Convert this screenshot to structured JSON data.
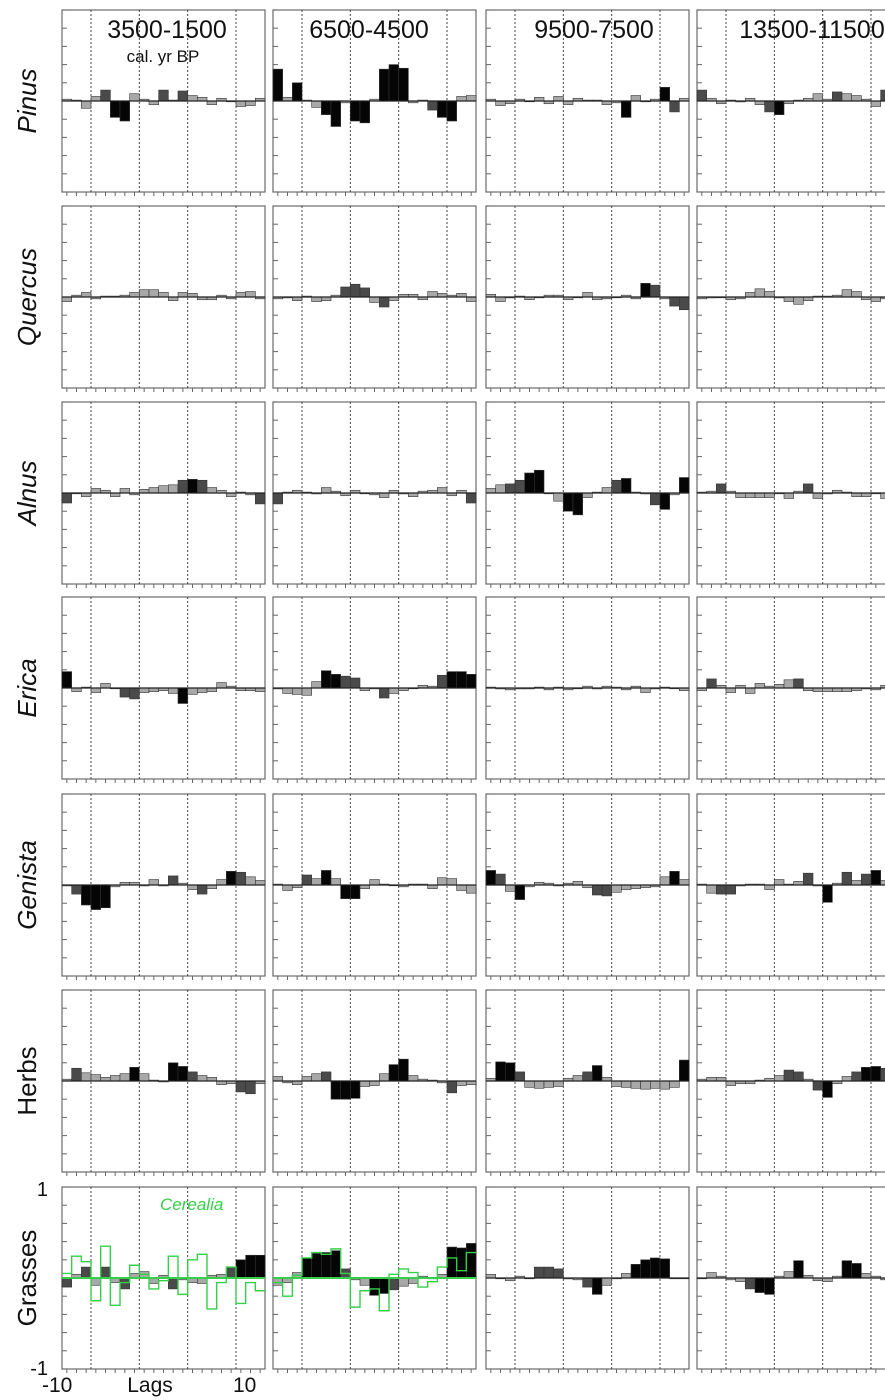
{
  "chart_data": {
    "type": "bar",
    "panel_titles": [
      "3500-1500",
      "6500-4500",
      "9500-7500",
      "13500-11500"
    ],
    "title_subtext": "cal. yr BP",
    "row_labels": [
      {
        "text": "Pinus",
        "italic": true
      },
      {
        "text": "Quercus",
        "italic": true
      },
      {
        "text": "Alnus",
        "italic": true
      },
      {
        "text": "Erica",
        "italic": true
      },
      {
        "text": "Genista",
        "italic": true
      },
      {
        "text": "Herbs",
        "italic": false
      },
      {
        "text": "Grasses",
        "italic": false
      }
    ],
    "xlabel": "Lags",
    "x_tick_labels": [
      "-10",
      "10"
    ],
    "y_tick_labels": [
      "1",
      "-1"
    ],
    "ylim": [
      -1,
      1
    ],
    "lags": [
      -10,
      -9,
      -8,
      -7,
      -6,
      -5,
      -4,
      -3,
      -2,
      -1,
      0,
      1,
      2,
      3,
      4,
      5,
      6,
      7,
      8,
      9,
      10
    ],
    "overlay_label": "Cerealia",
    "colors": {
      "low": "#a8a8a8",
      "mid": "#4a4a4a",
      "high": "#050505",
      "overlay": "#35d04a"
    },
    "values": [
      [
        [
          0.02,
          0.01,
          -0.08,
          0.05,
          0.12,
          -0.18,
          -0.22,
          0.08,
          0.02,
          -0.04,
          0.12,
          0.01,
          0.11,
          0.06,
          0.04,
          -0.04,
          0.03,
          0,
          -0.06,
          -0.05,
          0.03
        ],
        [
          0.35,
          0.04,
          0.2,
          0.01,
          -0.07,
          -0.15,
          -0.28,
          -0.02,
          -0.22,
          -0.24,
          0.02,
          0.35,
          0.4,
          0.36,
          -0.02,
          0.01,
          -0.1,
          -0.18,
          -0.22,
          0.05,
          0.06
        ],
        [
          0.02,
          -0.05,
          -0.03,
          0.02,
          0,
          0.04,
          -0.03,
          0.05,
          -0.04,
          0.03,
          0.01,
          0.01,
          -0.04,
          -0.02,
          -0.18,
          0.06,
          0,
          0.02,
          0.15,
          -0.12,
          0.03
        ],
        [
          0.12,
          0.03,
          -0.03,
          0.01,
          -0.01,
          0.03,
          -0.04,
          -0.12,
          -0.15,
          -0.03,
          0.01,
          0.03,
          0.08,
          0.02,
          0.1,
          0.08,
          0.06,
          0.02,
          -0.06,
          0.12,
          0.13
        ]
      ],
      [
        [
          -0.05,
          0.02,
          0.05,
          -0.02,
          0.01,
          0.01,
          0.02,
          0.05,
          0.08,
          0.08,
          0.05,
          -0.04,
          0.05,
          0.04,
          -0.03,
          -0.03,
          0.02,
          -0.02,
          0.05,
          0.06,
          -0.02
        ],
        [
          -0.02,
          -0.01,
          -0.04,
          0.01,
          -0.05,
          -0.04,
          0.02,
          0.11,
          0.14,
          0.1,
          -0.06,
          -0.11,
          -0.04,
          0.03,
          0.03,
          -0.03,
          0.06,
          0.04,
          0.02,
          0.04,
          -0.05
        ],
        [
          0.03,
          -0.05,
          -0.01,
          0.01,
          -0.03,
          0,
          0.02,
          0.02,
          -0.03,
          0,
          0.05,
          -0.03,
          -0.02,
          0,
          0.02,
          -0.02,
          0.15,
          0.13,
          -0.02,
          -0.1,
          -0.14
        ],
        [
          -0.02,
          -0.01,
          0,
          -0.03,
          -0.02,
          0.05,
          0.09,
          0.06,
          -0.01,
          -0.05,
          -0.08,
          -0.04,
          0.01,
          0.01,
          0.02,
          0.08,
          0.06,
          -0.03,
          -0.05,
          -0.02,
          -0.02
        ]
      ],
      [
        [
          -0.11,
          0,
          -0.04,
          0.05,
          0.03,
          -0.04,
          0.05,
          -0.02,
          0.04,
          0.06,
          0.08,
          0.09,
          0.14,
          0.15,
          0.14,
          0.06,
          0.03,
          -0.04,
          0.01,
          -0.02,
          -0.12
        ],
        [
          -0.12,
          0.01,
          0.03,
          0.01,
          -0.01,
          0.06,
          0.02,
          -0.03,
          0.03,
          0,
          -0.02,
          -0.05,
          0.03,
          -0.01,
          -0.04,
          0.02,
          0.03,
          0.06,
          -0.03,
          0.03,
          -0.11
        ],
        [
          0.05,
          0.09,
          0.1,
          0.14,
          0.22,
          0.25,
          0,
          -0.09,
          -0.2,
          -0.24,
          -0.05,
          0.01,
          0.06,
          0.14,
          0.16,
          0.01,
          -0.01,
          -0.13,
          -0.18,
          -0.02,
          0.17
        ],
        [
          0.01,
          0.02,
          0.1,
          0.02,
          -0.05,
          -0.05,
          -0.05,
          -0.05,
          0,
          -0.06,
          0.02,
          0.1,
          -0.06,
          -0.01,
          0.03,
          0.01,
          -0.04,
          -0.04,
          0,
          -0.06,
          0.06
        ]
      ],
      [
        [
          0.18,
          -0.04,
          0.01,
          -0.05,
          0.05,
          0,
          -0.1,
          -0.12,
          -0.05,
          -0.04,
          -0.03,
          -0.06,
          -0.17,
          -0.07,
          -0.05,
          -0.04,
          0.06,
          0.02,
          -0.03,
          -0.03,
          -0.04
        ],
        [
          -0.01,
          -0.06,
          -0.07,
          -0.08,
          0.07,
          0.19,
          0.15,
          0.13,
          0.11,
          -0.03,
          -0.01,
          -0.11,
          -0.06,
          -0.03,
          0,
          0.03,
          0.02,
          0.14,
          0.18,
          0.18,
          0.15
        ],
        [
          0.01,
          -0.01,
          -0.02,
          -0.01,
          -0.01,
          0.01,
          -0.02,
          0.01,
          -0.02,
          0,
          0.02,
          -0.01,
          0.02,
          0.01,
          -0.02,
          0.02,
          -0.05,
          -0.01,
          0.01,
          0,
          -0.03
        ],
        [
          -0.03,
          0.1,
          0.03,
          -0.05,
          0.03,
          -0.06,
          0.05,
          0.02,
          0.04,
          0.09,
          0.1,
          -0.03,
          -0.04,
          -0.04,
          -0.04,
          -0.04,
          -0.03,
          -0.01,
          -0.02,
          0.03,
          0.03
        ]
      ],
      [
        [
          -0.01,
          -0.1,
          -0.22,
          -0.27,
          -0.25,
          -0.02,
          0.03,
          0.03,
          -0.01,
          0.06,
          -0.01,
          0.1,
          0.02,
          -0.05,
          -0.1,
          -0.04,
          0.06,
          0.15,
          0.14,
          0.09,
          0.05
        ],
        [
          0.01,
          -0.06,
          -0.03,
          0.11,
          0.07,
          0.16,
          0.07,
          -0.15,
          -0.15,
          -0.04,
          0.06,
          0.01,
          0,
          -0.02,
          0.01,
          0.01,
          -0.04,
          0.08,
          0.07,
          -0.06,
          -0.09
        ],
        [
          0.16,
          0.12,
          -0.07,
          -0.16,
          -0.02,
          0.03,
          0.02,
          -0.01,
          0.02,
          0.04,
          -0.03,
          -0.11,
          -0.12,
          -0.08,
          -0.05,
          -0.04,
          -0.03,
          -0.02,
          0.09,
          0.15,
          0.06
        ],
        [
          0.01,
          -0.09,
          -0.1,
          -0.1,
          -0.01,
          0.01,
          0.01,
          -0.05,
          0.06,
          0.01,
          0.04,
          0.13,
          -0.01,
          -0.19,
          0.02,
          0.14,
          0.05,
          0.12,
          0.16,
          0.05,
          0.02
        ]
      ],
      [
        [
          0.02,
          0.14,
          0.09,
          0.07,
          0.04,
          0.06,
          0.08,
          0.15,
          0.08,
          0.01,
          -0.01,
          0.2,
          0.16,
          0.1,
          0.06,
          0.04,
          -0.04,
          -0.03,
          -0.12,
          -0.14,
          -0.03
        ],
        [
          0.05,
          -0.02,
          -0.04,
          0.05,
          0.08,
          0.1,
          -0.2,
          -0.2,
          -0.19,
          -0.06,
          -0.05,
          0.08,
          0.18,
          0.24,
          0.06,
          0.02,
          0.01,
          -0.02,
          -0.13,
          -0.05,
          -0.04
        ],
        [
          0.03,
          0.21,
          0.2,
          0.1,
          -0.07,
          -0.08,
          -0.07,
          -0.06,
          0.03,
          0.06,
          0.1,
          0.17,
          0.04,
          -0.06,
          -0.07,
          -0.08,
          -0.09,
          -0.08,
          -0.09,
          -0.07,
          0.23
        ],
        [
          0.02,
          0.04,
          0.04,
          -0.05,
          -0.03,
          -0.03,
          0.01,
          0.03,
          0.06,
          0.12,
          0.1,
          0.02,
          -0.1,
          -0.18,
          -0.03,
          0.05,
          0.1,
          0.15,
          0.16,
          0.14,
          0.14
        ]
      ],
      [
        [
          -0.1,
          0.04,
          0.12,
          -0.08,
          0.12,
          -0.05,
          -0.12,
          0.05,
          0.07,
          -0.06,
          0.03,
          -0.12,
          -0.02,
          -0.05,
          -0.06,
          0.03,
          0.04,
          0.12,
          0.2,
          0.25,
          0.25
        ],
        [
          -0.08,
          -0.05,
          0.06,
          0.22,
          0.27,
          0.28,
          0.3,
          0.1,
          -0.02,
          -0.08,
          -0.19,
          -0.17,
          -0.13,
          -0.09,
          -0.06,
          0.02,
          0,
          0.04,
          0.34,
          0.33,
          0.38
        ],
        [
          0.04,
          0,
          -0.03,
          0.02,
          0,
          0.12,
          0.12,
          0.1,
          -0.01,
          -0.02,
          -0.1,
          -0.18,
          -0.08,
          0,
          0.05,
          0.15,
          0.2,
          0.22,
          0.21,
          0,
          0
        ],
        [
          0,
          0.06,
          0.02,
          -0.02,
          -0.04,
          -0.12,
          -0.16,
          -0.18,
          0.02,
          0.07,
          0.19,
          0.03,
          -0.03,
          -0.04,
          0.02,
          0.19,
          0.16,
          0.05,
          0.02,
          -0.02,
          -0.05
        ]
      ]
    ],
    "overlay_series": [
      [
        0.05,
        0.24,
        0.18,
        -0.25,
        0.35,
        -0.3,
        -0.05,
        0.14,
        0.04,
        -0.12,
        -0.03,
        0.24,
        -0.18,
        0.2,
        0.26,
        -0.34,
        -0.05,
        0.12,
        -0.28,
        -0.05,
        -0.14
      ],
      [
        -0.05,
        -0.2,
        0.03,
        0.22,
        0.28,
        0.26,
        0.32,
        0.05,
        -0.32,
        -0.14,
        -0.12,
        -0.36,
        0.04,
        0.1,
        0.06,
        -0.1,
        -0.04,
        0.12,
        0.22,
        0.08,
        0.28
      ]
    ]
  }
}
